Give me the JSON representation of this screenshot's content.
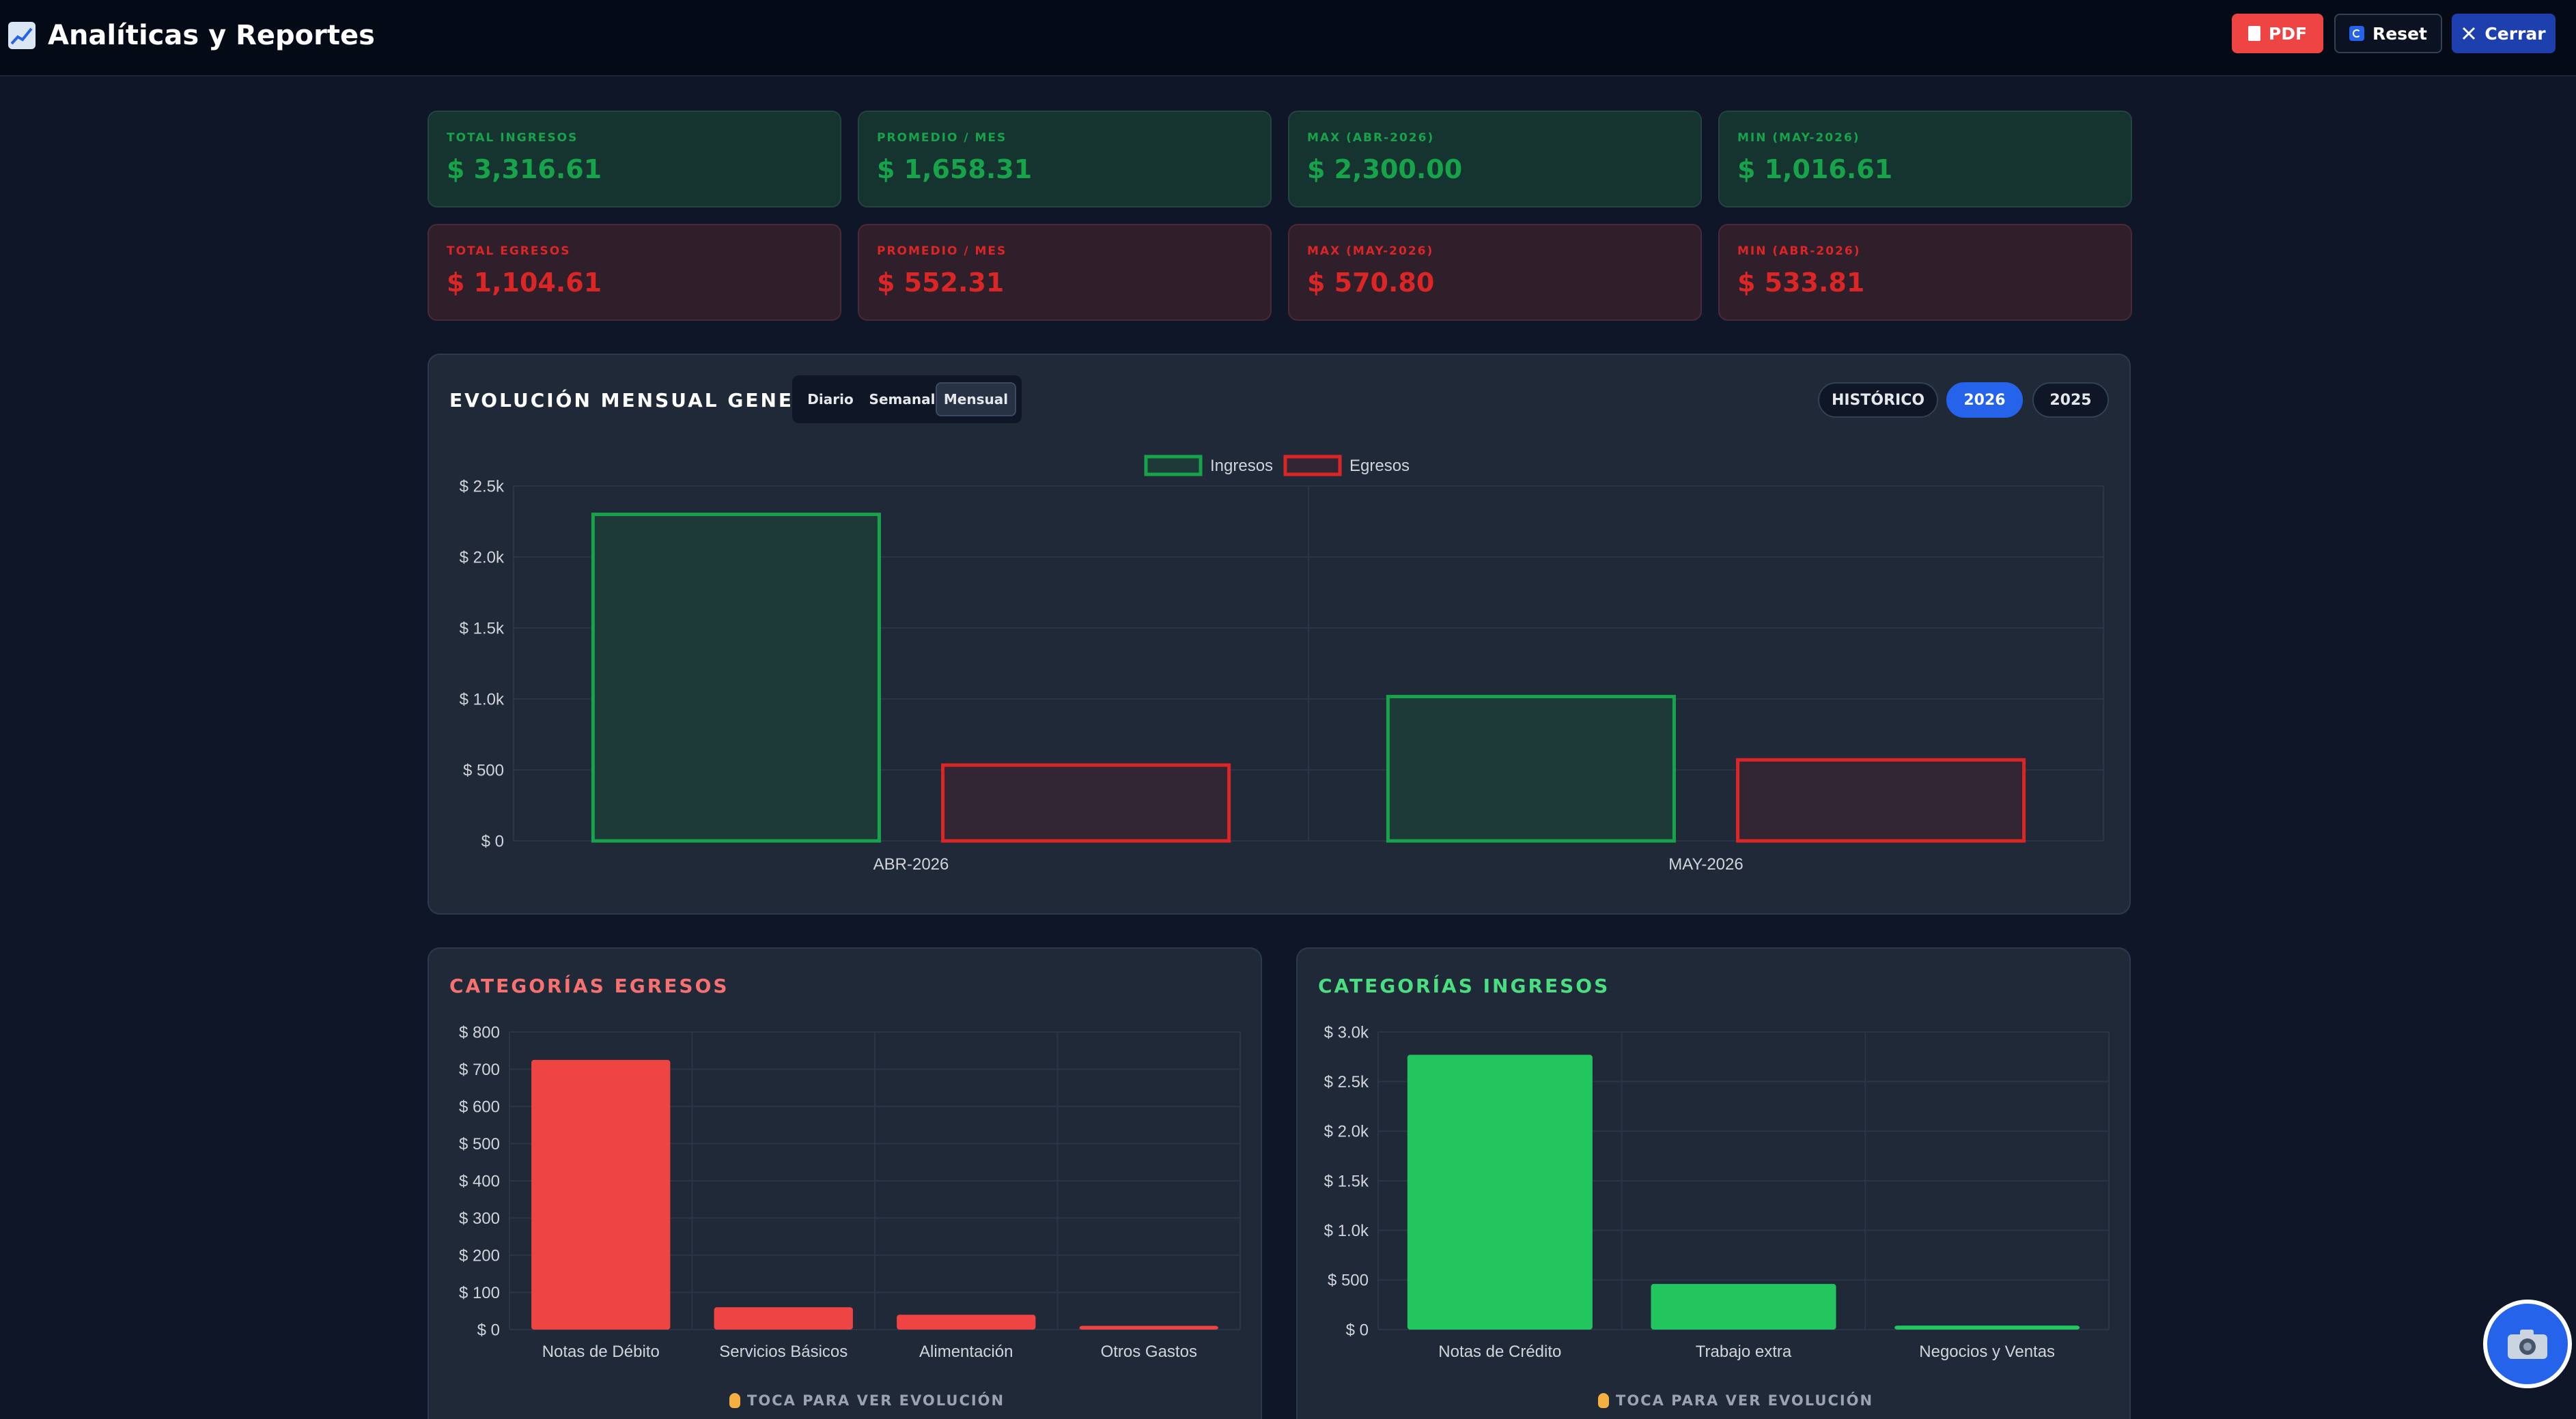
{
  "header": {
    "title": "Analíticas y Reportes",
    "pdf_label": "PDF",
    "reset_label": "Reset",
    "close_label": "Cerrar"
  },
  "income_stats": [
    {
      "label": "TOTAL INGRESOS",
      "value": "$ 3,316.61"
    },
    {
      "label": "PROMEDIO / MES",
      "value": "$ 1,658.31"
    },
    {
      "label": "MAX (ABR-2026)",
      "value": "$ 2,300.00"
    },
    {
      "label": "MIN (MAY-2026)",
      "value": "$ 1,016.61"
    }
  ],
  "expense_stats": [
    {
      "label": "TOTAL EGRESOS",
      "value": "$ 1,104.61"
    },
    {
      "label": "PROMEDIO / MES",
      "value": "$ 552.31"
    },
    {
      "label": "MAX (MAY-2026)",
      "value": "$ 570.80"
    },
    {
      "label": "MIN (ABR-2026)",
      "value": "$ 533.81"
    }
  ],
  "evolution": {
    "title": "EVOLUCIÓN MENSUAL GENERAL",
    "granularity": [
      {
        "label": "Diario",
        "active": false
      },
      {
        "label": "Semanal",
        "active": false
      },
      {
        "label": "Mensual",
        "active": true
      }
    ],
    "periods": [
      {
        "label": "HISTÓRICO",
        "active": false
      },
      {
        "label": "2026",
        "active": true
      },
      {
        "label": "2025",
        "active": false
      }
    ]
  },
  "expense_categories_panel": {
    "title": "CATEGORÍAS EGRESOS",
    "hint": "TOCA PARA VER EVOLUCIÓN"
  },
  "income_categories_panel": {
    "title": "CATEGORÍAS INGRESOS",
    "hint": "TOCA PARA VER EVOLUCIÓN"
  },
  "colors": {
    "income": "#16a34a",
    "income_bar": "#22c55e",
    "expense": "#dc2626",
    "expense_bar": "#ef4444",
    "accent": "#2563eb"
  },
  "icons": {
    "title": "chart-increasing-icon",
    "pdf": "document-icon",
    "reset": "reset-icon",
    "close": "close-icon",
    "hint": "pointing-hand-icon",
    "fab": "camera-icon"
  },
  "chart_data": [
    {
      "type": "bar",
      "categories": [
        "ABR-2026",
        "MAY-2026"
      ],
      "series": [
        {
          "name": "Ingresos",
          "values": [
            2300.0,
            1016.61
          ]
        },
        {
          "name": "Egresos",
          "values": [
            533.81,
            570.8
          ]
        }
      ],
      "y_ticks": [
        "$ 0",
        "$ 500",
        "$ 1.0k",
        "$ 1.5k",
        "$ 2.0k",
        "$ 2.5k"
      ],
      "ylim": [
        0,
        2500
      ],
      "legend": "top-center",
      "grid": true
    },
    {
      "type": "bar",
      "categories": [
        "Notas de Débito",
        "Servicios Básicos",
        "Alimentación",
        "Otros Gastos"
      ],
      "values": [
        725,
        60,
        40,
        10
      ],
      "y_ticks": [
        "$ 0",
        "$ 100",
        "$ 200",
        "$ 300",
        "$ 400",
        "$ 500",
        "$ 600",
        "$ 700",
        "$ 800"
      ],
      "ylim": [
        0,
        800
      ],
      "grid": true
    },
    {
      "type": "bar",
      "categories": [
        "Notas de Crédito",
        "Trabajo extra",
        "Negocios y Ventas"
      ],
      "values": [
        2770,
        460,
        40
      ],
      "y_ticks": [
        "$ 0",
        "$ 500",
        "$ 1.0k",
        "$ 1.5k",
        "$ 2.0k",
        "$ 2.5k",
        "$ 3.0k"
      ],
      "ylim": [
        0,
        3000
      ],
      "grid": true
    }
  ]
}
